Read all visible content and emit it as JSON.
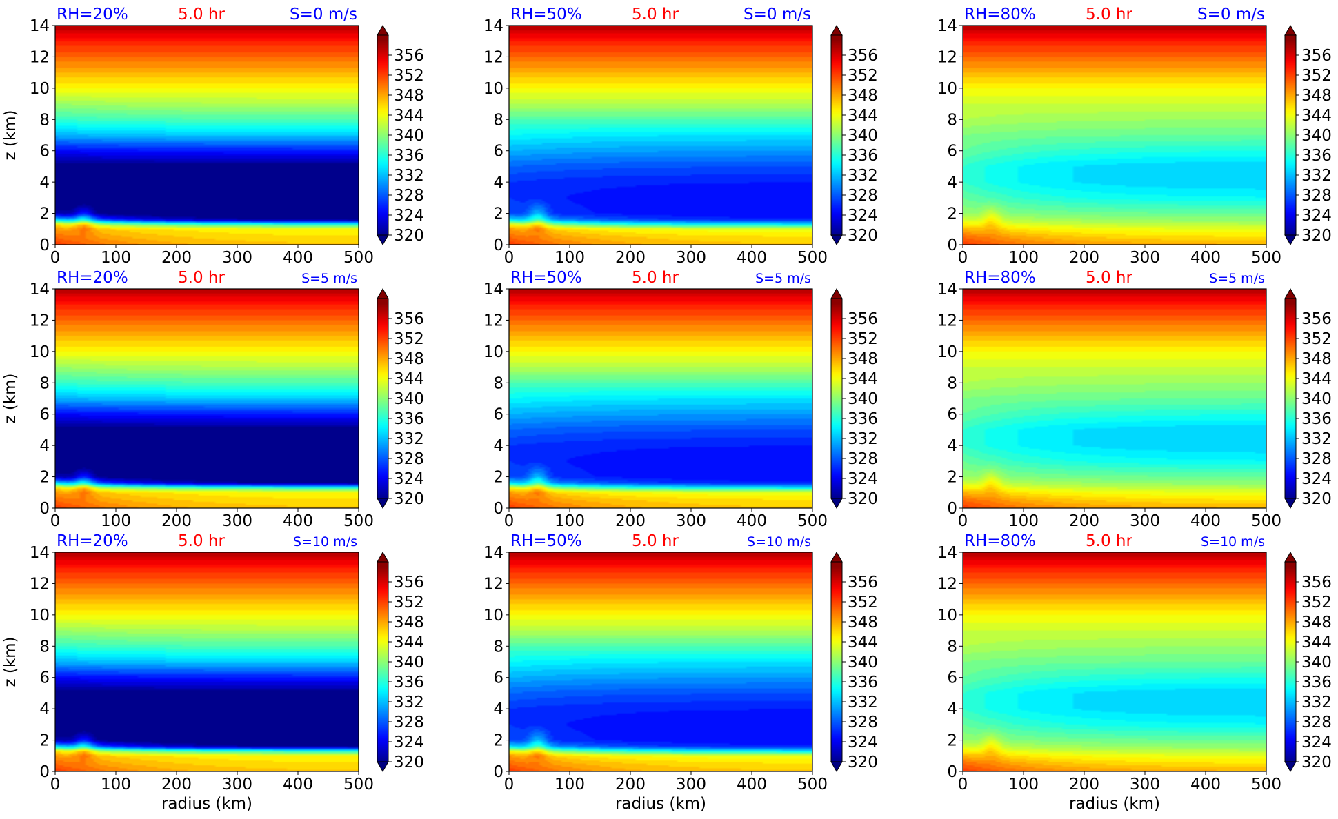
{
  "chart_data": {
    "type": "heatmap",
    "colormap": "jet",
    "x_axis": {
      "label": "radius (km)",
      "range": [
        0,
        500
      ],
      "ticks": [
        0,
        100,
        200,
        300,
        400,
        500
      ]
    },
    "y_axis": {
      "label": "z (km)",
      "range": [
        0,
        14
      ],
      "ticks": [
        0,
        2,
        4,
        6,
        8,
        10,
        12,
        14
      ]
    },
    "colorbar": {
      "range": [
        320,
        360
      ],
      "ticks": [
        320,
        324,
        328,
        332,
        336,
        340,
        344,
        348,
        352,
        356
      ],
      "extend": "both"
    },
    "time_label": "5.0 hr",
    "rh_labels": [
      "RH=20%",
      "RH=50%",
      "RH=80%"
    ],
    "shear_labels": [
      "S=0 m/s",
      "S=5 m/s",
      "S=10 m/s"
    ],
    "colors": {
      "rh_text": "#0000ff",
      "time_text": "#ff0000",
      "shear_text": "#0000ff"
    },
    "profiles": {
      "RH=20%": {
        "z_km": [
          0,
          0.5,
          1.0,
          1.3,
          1.6,
          2,
          3,
          4,
          5,
          6,
          7,
          8,
          9,
          10,
          11,
          12,
          13,
          14
        ],
        "theta_e_far": [
          347,
          346,
          345,
          336,
          320,
          318,
          317,
          318,
          320,
          326,
          333,
          338,
          342,
          345,
          348,
          351,
          354,
          358
        ],
        "theta_e_near": [
          353,
          351,
          349,
          346,
          334,
          322,
          318,
          318,
          320,
          325,
          332,
          337,
          341,
          345,
          348,
          351,
          354,
          358
        ]
      },
      "RH=50%": {
        "z_km": [
          0,
          0.5,
          1.0,
          1.3,
          1.6,
          2,
          3,
          4,
          5,
          6,
          7,
          8,
          9,
          10,
          11,
          12,
          13,
          14
        ],
        "theta_e_far": [
          347,
          346,
          344,
          334,
          326,
          325,
          325,
          326,
          328,
          331,
          334,
          338,
          342,
          345,
          348,
          351,
          354,
          358
        ],
        "theta_e_near": [
          353,
          351,
          349,
          345,
          334,
          328,
          327,
          327,
          329,
          332,
          335,
          338,
          342,
          345,
          348,
          351,
          354,
          358
        ]
      },
      "RH=80%": {
        "z_km": [
          0,
          0.5,
          1.0,
          1.5,
          2,
          3,
          4,
          5,
          6,
          7,
          8,
          9,
          10,
          11,
          12,
          13,
          14
        ],
        "theta_e_far": [
          348,
          346,
          344,
          341,
          339,
          335,
          333,
          333,
          336,
          339,
          341,
          343,
          345,
          348,
          351,
          354,
          358
        ],
        "theta_e_near": [
          353,
          351,
          348,
          344,
          341,
          339,
          337,
          337,
          339,
          340,
          342,
          343,
          345,
          348,
          351,
          354,
          358
        ]
      }
    }
  }
}
